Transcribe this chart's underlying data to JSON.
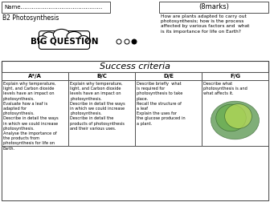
{
  "subtitle": "B2 Photosynthesis",
  "big_question": "BIG QUESTION",
  "marks": "(8marks)",
  "question_text": "How are plants adapted to carry out\nphotosynthesis; how is the process\naffected by various factors and  what\nis its importance for life on Earth?",
  "success_criteria": "Success criteria",
  "col_headers": [
    "A*/A",
    "B/C",
    "D/E",
    "F/G"
  ],
  "col_texts": [
    "Explain why temperature,\nlight, and Carbon dioxide\nlevels have an impact on\nphotosynthesis.\nEvaluate how a leaf is\nadapted for\nphotosynthesis.\nDescribe in detail the ways\nin which we could increase\nphotosynthesis.\nAnalyse the importance of\nthe products from\nphotosynthesis for life on\nEarth.",
    "Explain why temperature,\nlight, and Carbon dioxide\nlevels have an impact on\nphotosynthesis.\nDescribe in detail the ways\nin which we could increase\nphotosynthesis.\nDescribe in detail the\nproducts of photosynthesis\nand their various uses.",
    "Describe briefly  what\nis required for\nphotosynthesis to take\nplace.\nRecall the structure of\na leaf\nExplain the uses for\nthe glucose produced in\na plant.",
    "Describe what\nphotosynthesis is and\nwhat affects it."
  ],
  "bg_color": "#ffffff"
}
